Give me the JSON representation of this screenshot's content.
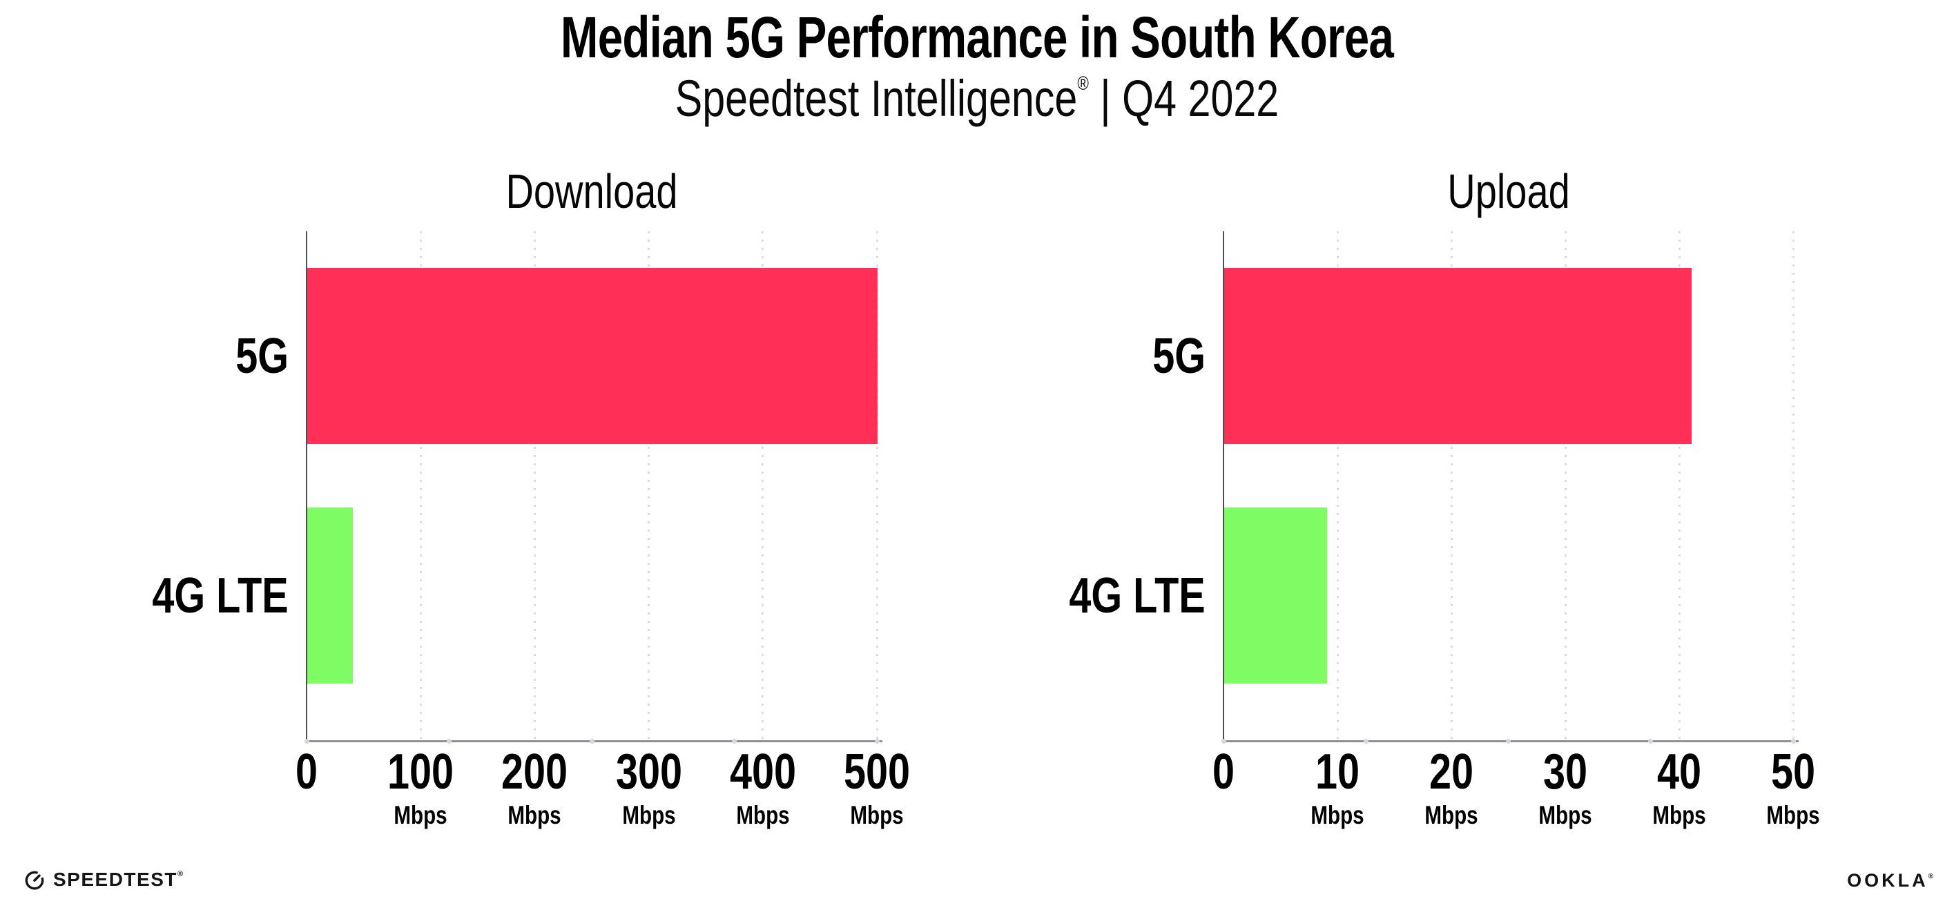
{
  "header": {
    "title": "Median 5G Performance in South Korea",
    "subtitle_brand": "Speedtest Intelligence",
    "subtitle_reg": "®",
    "subtitle_rest": " | Q4 2022"
  },
  "colors": {
    "bar_5g": "#ff2f58",
    "bar_4g_lte": "#7ffb64",
    "gridline": "#d9dbe8",
    "x_axis_line": "#8f8f94",
    "y_axis_line": "#4d4d52",
    "axis_dot": "#d4d6e3",
    "text": "#000000"
  },
  "chart_data": [
    {
      "type": "bar",
      "orientation": "horizontal",
      "title": "Download",
      "categories": [
        "5G",
        "4G LTE"
      ],
      "values": [
        500,
        40
      ],
      "unit": "Mbps",
      "xlim": [
        0,
        500
      ],
      "xticks": [
        0,
        100,
        200,
        300,
        400,
        500
      ],
      "tick_unit": "Mbps",
      "bar_colors": [
        "#ff2f58",
        "#7ffb64"
      ],
      "grid": "dotted-vertical-at-ticks",
      "legend": "none"
    },
    {
      "type": "bar",
      "orientation": "horizontal",
      "title": "Upload",
      "categories": [
        "5G",
        "4G LTE"
      ],
      "values": [
        41,
        9
      ],
      "unit": "Mbps",
      "xlim": [
        0,
        50
      ],
      "xticks": [
        0,
        10,
        20,
        30,
        40,
        50
      ],
      "tick_unit": "Mbps",
      "bar_colors": [
        "#ff2f58",
        "#7ffb64"
      ],
      "grid": "dotted-vertical-at-ticks",
      "legend": "none"
    }
  ],
  "footer": {
    "speedtest_label": "SPEEDTEST",
    "speedtest_reg": "®",
    "ookla_label": "OOKLA",
    "ookla_reg": "®"
  }
}
